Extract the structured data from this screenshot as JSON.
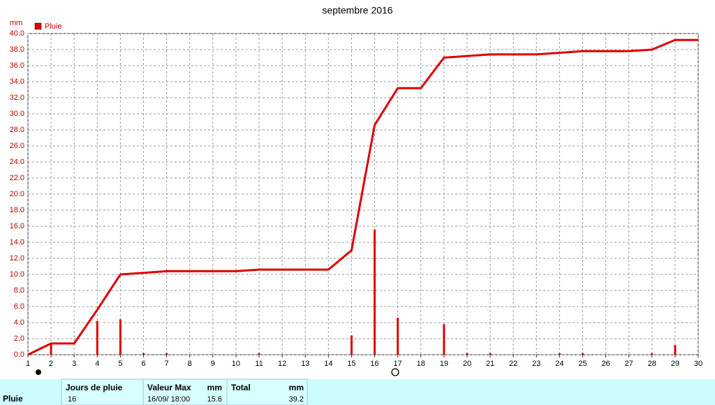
{
  "chart_data": {
    "type": "bar",
    "title": "septembre 2016",
    "y_unit": "mm",
    "x": [
      1,
      2,
      3,
      4,
      5,
      6,
      7,
      8,
      9,
      10,
      11,
      12,
      13,
      14,
      15,
      16,
      17,
      18,
      19,
      20,
      21,
      22,
      23,
      24,
      25,
      26,
      27,
      28,
      29,
      30
    ],
    "series": [
      {
        "name": "Pluie",
        "color": "#e00000",
        "values": [
          0,
          1.4,
          0,
          4.2,
          4.4,
          0.2,
          0.2,
          0,
          0,
          0,
          0.2,
          0,
          0,
          0,
          2.4,
          15.6,
          4.6,
          0,
          3.8,
          0.2,
          0.2,
          0,
          0,
          0.2,
          0.2,
          0,
          0,
          0.2,
          1.2,
          0
        ]
      }
    ],
    "cumulative_values": [
      0,
      1.4,
      1.4,
      5.6,
      10.0,
      10.2,
      10.4,
      10.4,
      10.4,
      10.4,
      10.6,
      10.6,
      10.6,
      10.6,
      13.0,
      28.6,
      33.2,
      33.2,
      37.0,
      37.2,
      37.4,
      37.4,
      37.4,
      37.6,
      37.8,
      37.8,
      37.8,
      38.0,
      39.2,
      39.2
    ],
    "xlim": [
      1,
      30
    ],
    "xticks": [
      1,
      2,
      3,
      4,
      5,
      6,
      7,
      8,
      9,
      10,
      11,
      12,
      13,
      14,
      15,
      16,
      17,
      18,
      19,
      20,
      21,
      22,
      23,
      24,
      25,
      26,
      27,
      28,
      29,
      30
    ],
    "ylim": [
      0,
      40
    ],
    "yticks": [
      {
        "value": 0,
        "label": "0.0"
      },
      {
        "value": 2,
        "label": "2.0"
      },
      {
        "value": 4,
        "label": "4.0"
      },
      {
        "value": 6,
        "label": "6.0"
      },
      {
        "value": 8,
        "label": "8.0"
      },
      {
        "value": 10,
        "label": "10.0"
      },
      {
        "value": 12,
        "label": "12.0"
      },
      {
        "value": 14,
        "label": "14.0"
      },
      {
        "value": 16,
        "label": "16.0"
      },
      {
        "value": 18,
        "label": "18.0"
      },
      {
        "value": 20,
        "label": "20.0"
      },
      {
        "value": 22,
        "label": "22.0"
      },
      {
        "value": 24,
        "label": "24.0"
      },
      {
        "value": 26,
        "label": "26.0"
      },
      {
        "value": 28,
        "label": "28.0"
      },
      {
        "value": 30,
        "label": "30.0"
      },
      {
        "value": 32,
        "label": "32.0"
      },
      {
        "value": 34,
        "label": "34.0"
      },
      {
        "value": 36,
        "label": "36.0"
      },
      {
        "value": 38,
        "label": "38.0"
      },
      {
        "value": 40,
        "label": "40.0"
      }
    ],
    "grid": true
  },
  "table": {
    "row_label": "Pluie",
    "headers": [
      "Jours de pluie",
      "Valeur Max",
      "mm",
      "Total",
      "mm"
    ],
    "values": {
      "rain_days": 16,
      "max_date": "16/09/ 18:00",
      "max_value": 15.6,
      "total": 39.2
    }
  }
}
